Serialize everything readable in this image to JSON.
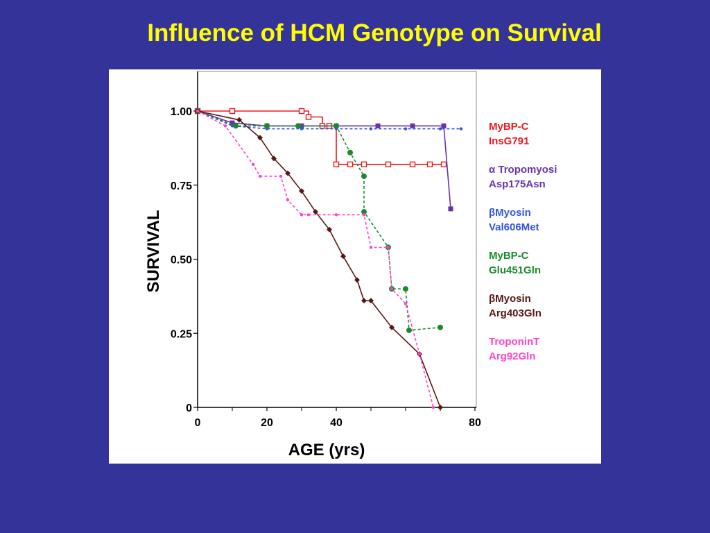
{
  "slide": {
    "title": "Influence of HCM Genotype on Survival"
  },
  "chart_data": {
    "type": "line",
    "title": "Influence of HCM Genotype on Survival",
    "xlabel": "AGE (yrs)",
    "ylabel": "SURVIVAL",
    "xlim": [
      0,
      80
    ],
    "ylim": [
      0,
      1
    ],
    "x_ticks": [
      "0",
      "20",
      "40",
      "80"
    ],
    "y_ticks": [
      "0",
      "0.25",
      "0.50",
      "0.75",
      "1.00"
    ],
    "grid": false,
    "legend_position": "right",
    "series": [
      {
        "name": "MyBP-C InsG791",
        "label_lines": [
          "MyBP-C",
          "InsG791"
        ],
        "color": "#e8191f",
        "marker": "open-square",
        "dash": "solid",
        "step": true,
        "x": [
          0,
          10,
          30,
          32,
          36,
          38,
          40,
          44,
          48,
          55,
          62,
          67,
          71
        ],
        "y": [
          1.0,
          1.0,
          1.0,
          0.98,
          0.95,
          0.95,
          0.82,
          0.82,
          0.82,
          0.82,
          0.82,
          0.82,
          0.82
        ]
      },
      {
        "name": "α Tropomyosin Asp175Asn",
        "label_lines": [
          "α Tropomyosi",
          "Asp175Asn"
        ],
        "color": "#6633aa",
        "marker": "filled-square",
        "dash": "solid",
        "step": false,
        "x": [
          0,
          10,
          20,
          30,
          40,
          52,
          62,
          71,
          73
        ],
        "y": [
          1.0,
          0.96,
          0.95,
          0.95,
          0.95,
          0.95,
          0.95,
          0.95,
          0.67
        ]
      },
      {
        "name": "βMyosin Val606Met",
        "label_lines": [
          "βMyosin",
          "Val606Met"
        ],
        "color": "#3355dd",
        "marker": "small-dot",
        "dash": "dashed",
        "step": false,
        "x": [
          0,
          10,
          20,
          30,
          40,
          50,
          60,
          70,
          76
        ],
        "y": [
          1.0,
          0.95,
          0.94,
          0.94,
          0.94,
          0.94,
          0.94,
          0.94,
          0.94
        ]
      },
      {
        "name": "MyBP-C Glu451Gln",
        "label_lines": [
          "MyBP-C",
          "Glu451Gln"
        ],
        "color": "#1a8a2a",
        "marker": "filled-circle",
        "dash": "dashed",
        "step": false,
        "x": [
          0,
          11,
          20,
          29,
          40,
          44,
          48,
          48,
          55,
          56,
          60,
          61,
          70
        ],
        "y": [
          1.0,
          0.95,
          0.95,
          0.95,
          0.95,
          0.86,
          0.78,
          0.66,
          0.54,
          0.4,
          0.4,
          0.26,
          0.27
        ]
      },
      {
        "name": "βMyosin Arg403Gln",
        "label_lines": [
          "βMyosin",
          "Arg403Gln"
        ],
        "color": "#5a1414",
        "marker": "filled-diamond",
        "dash": "solid",
        "step": false,
        "x": [
          0,
          12,
          18,
          22,
          26,
          30,
          34,
          38,
          42,
          46,
          48,
          50,
          56,
          64,
          70
        ],
        "y": [
          1.0,
          0.97,
          0.91,
          0.84,
          0.79,
          0.73,
          0.66,
          0.6,
          0.51,
          0.43,
          0.36,
          0.36,
          0.27,
          0.18,
          0.0
        ]
      },
      {
        "name": "TroponinT Arg92Gln",
        "label_lines": [
          "TroponinT",
          "Arg92Gln"
        ],
        "color": "#ff44cc",
        "marker": "small-dot",
        "dash": "dashed",
        "step": false,
        "x": [
          0,
          8,
          16,
          18,
          24,
          26,
          30,
          32,
          40,
          48,
          50,
          55,
          56,
          60,
          64,
          68
        ],
        "y": [
          1.0,
          0.95,
          0.82,
          0.78,
          0.78,
          0.7,
          0.65,
          0.65,
          0.65,
          0.65,
          0.54,
          0.54,
          0.4,
          0.35,
          0.18,
          0.0
        ]
      }
    ]
  }
}
